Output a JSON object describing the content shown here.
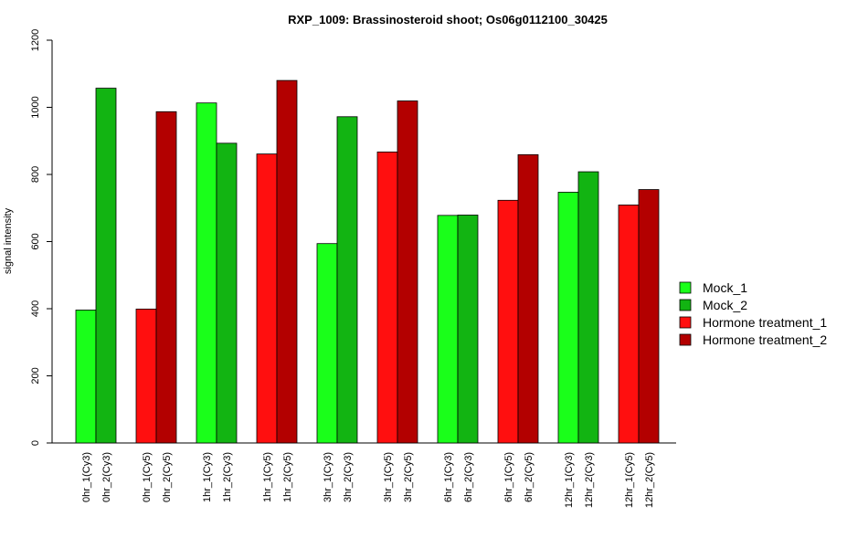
{
  "chart_data": {
    "type": "bar",
    "title": "RXP_1009: Brassinosteroid shoot; Os06g0112100_30425",
    "ylabel": "signal intensity",
    "xlabel": "",
    "ylim": [
      0,
      1200
    ],
    "yticks": [
      0,
      200,
      400,
      600,
      800,
      1000,
      1200
    ],
    "grid": false,
    "legend_position": "right",
    "legend": [
      {
        "name": "Mock_1",
        "color": "#1aff1a"
      },
      {
        "name": "Mock_2",
        "color": "#12b412"
      },
      {
        "name": "Hormone treatment_1",
        "color": "#ff0f0f"
      },
      {
        "name": "Hormone treatment_2",
        "color": "#b30000"
      }
    ],
    "bars": [
      {
        "label": "0hr_1(Cy3)",
        "value": 396,
        "color": "#1aff1a"
      },
      {
        "label": "0hr_2(Cy3)",
        "value": 1057,
        "color": "#12b412"
      },
      {
        "label": "0hr_1(Cy5)",
        "value": 399,
        "color": "#ff0f0f"
      },
      {
        "label": "0hr_2(Cy5)",
        "value": 987,
        "color": "#b30000"
      },
      {
        "label": "1hr_1(Cy3)",
        "value": 1013,
        "color": "#1aff1a"
      },
      {
        "label": "1hr_2(Cy3)",
        "value": 893,
        "color": "#12b412"
      },
      {
        "label": "1hr_1(Cy5)",
        "value": 861,
        "color": "#ff0f0f"
      },
      {
        "label": "1hr_2(Cy5)",
        "value": 1080,
        "color": "#b30000"
      },
      {
        "label": "3hr_1(Cy3)",
        "value": 594,
        "color": "#1aff1a"
      },
      {
        "label": "3hr_2(Cy3)",
        "value": 972,
        "color": "#12b412"
      },
      {
        "label": "3hr_1(Cy5)",
        "value": 867,
        "color": "#ff0f0f"
      },
      {
        "label": "3hr_2(Cy5)",
        "value": 1019,
        "color": "#b30000"
      },
      {
        "label": "6hr_1(Cy3)",
        "value": 678,
        "color": "#1aff1a"
      },
      {
        "label": "6hr_2(Cy3)",
        "value": 679,
        "color": "#12b412"
      },
      {
        "label": "6hr_1(Cy5)",
        "value": 723,
        "color": "#ff0f0f"
      },
      {
        "label": "6hr_2(Cy5)",
        "value": 859,
        "color": "#b30000"
      },
      {
        "label": "12hr_1(Cy3)",
        "value": 747,
        "color": "#1aff1a"
      },
      {
        "label": "12hr_2(Cy3)",
        "value": 808,
        "color": "#12b412"
      },
      {
        "label": "12hr_1(Cy5)",
        "value": 709,
        "color": "#ff0f0f"
      },
      {
        "label": "12hr_2(Cy5)",
        "value": 755,
        "color": "#b30000"
      }
    ]
  }
}
